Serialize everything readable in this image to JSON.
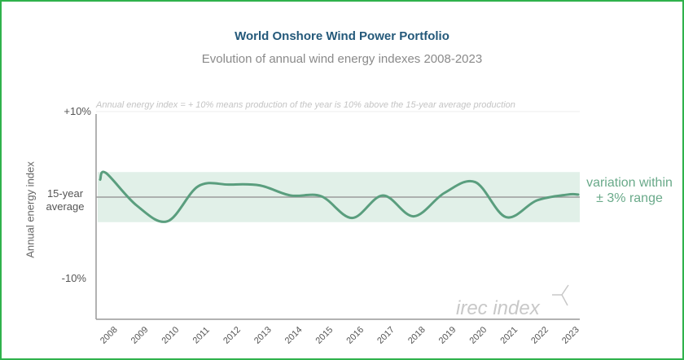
{
  "chart_data": {
    "type": "line",
    "title": "World Onshore Wind Power Portfolio",
    "subtitle": "Evolution of annual wind energy indexes 2008-2023",
    "note": "Annual energy index = + 10% means production of the year is 10% above the 15-year average production",
    "ylabel": "Annual energy index",
    "ytick_labels": {
      "top": "+10%",
      "middle": "15-year average",
      "bottom": "-10%"
    },
    "ylim": [
      -15,
      10
    ],
    "band": {
      "low": -3,
      "high": 3,
      "label": "variation within ± 3% range"
    },
    "categories": [
      "2008",
      "2009",
      "2010",
      "2011",
      "2012",
      "2013",
      "2014",
      "2015",
      "2016",
      "2017",
      "2018",
      "2019",
      "2020",
      "2021",
      "2022",
      "2023"
    ],
    "values": [
      2.9,
      -1.0,
      -2.9,
      1.3,
      1.5,
      1.4,
      0.2,
      0.1,
      -2.5,
      0.2,
      -2.3,
      0.5,
      1.8,
      -2.4,
      -0.4,
      0.3
    ],
    "watermark": "irec index",
    "colors": {
      "line": "#5a9e7e",
      "band": "#e1f0e8",
      "title": "#24597a",
      "border": "#2fb24c",
      "variation": "#6aaa8a"
    }
  }
}
